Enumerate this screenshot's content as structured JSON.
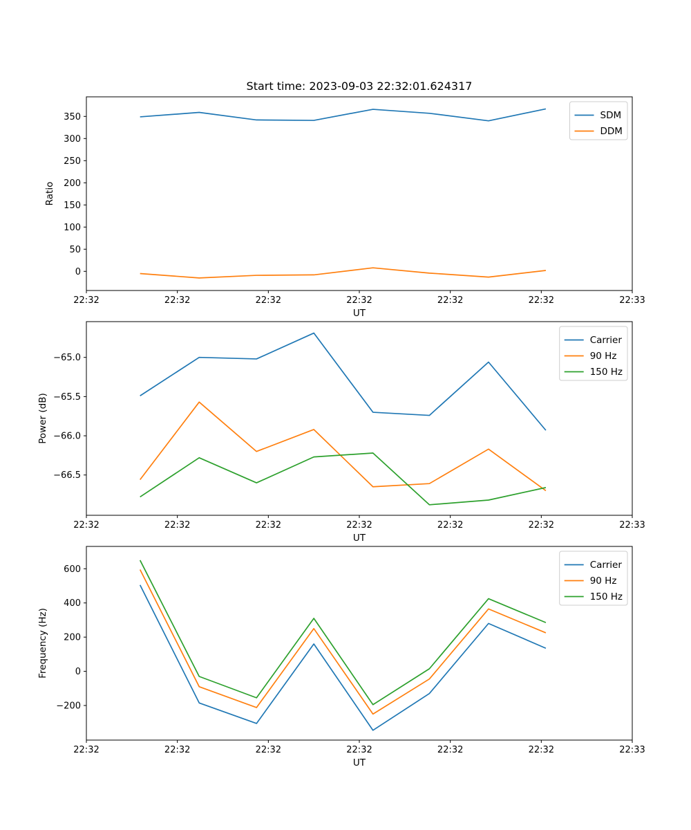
{
  "figure": {
    "title": "Start time: 2023-09-03 22:32:01.624317",
    "background": "#ffffff",
    "text_color": "#000000"
  },
  "chart_data": [
    {
      "type": "line",
      "title": "Start time: 2023-09-03 22:32:01.624317",
      "xlabel": "UT",
      "ylabel": "Ratio",
      "grid": false,
      "legend_position": "upper right",
      "xlim": [
        0,
        60
      ],
      "ylim": [
        -43.3,
        394.2
      ],
      "x": [
        5.9,
        12.4,
        18.7,
        25.0,
        31.5,
        37.7,
        44.2,
        50.5
      ],
      "xticks": {
        "values": [
          0,
          10,
          20,
          30,
          40,
          50,
          60
        ],
        "labels": [
          "22:32",
          "22:32",
          "22:32",
          "22:32",
          "22:32",
          "22:32",
          "22:33"
        ]
      },
      "yticks": {
        "values": [
          0,
          50,
          100,
          150,
          200,
          250,
          300,
          350
        ],
        "labels": [
          "0",
          "50",
          "100",
          "150",
          "200",
          "250",
          "300",
          "350"
        ]
      },
      "series": [
        {
          "name": "SDM",
          "color": "#1f77b4",
          "values": [
            349,
            359,
            342,
            341,
            366,
            357,
            340,
            367
          ]
        },
        {
          "name": "DDM",
          "color": "#ff7f0e",
          "values": [
            -5,
            -15,
            -9,
            -8,
            8,
            -4,
            -13,
            2
          ]
        }
      ]
    },
    {
      "type": "line",
      "title": "",
      "xlabel": "UT",
      "ylabel": "Power (dB)",
      "grid": false,
      "legend_position": "upper right",
      "xlim": [
        0,
        60
      ],
      "ylim": [
        -67.014,
        -64.544
      ],
      "x": [
        5.9,
        12.4,
        18.7,
        25.0,
        31.5,
        37.7,
        44.2,
        50.5
      ],
      "xticks": {
        "values": [
          0,
          10,
          20,
          30,
          40,
          50,
          60
        ],
        "labels": [
          "22:32",
          "22:32",
          "22:32",
          "22:32",
          "22:32",
          "22:32",
          "22:33"
        ]
      },
      "yticks": {
        "values": [
          -65.0,
          -65.5,
          -66.0,
          -66.5
        ],
        "labels": [
          "−65.0",
          "−65.5",
          "−66.0",
          "−66.5"
        ]
      },
      "series": [
        {
          "name": "Carrier",
          "color": "#1f77b4",
          "values": [
            -65.49,
            -65.0,
            -65.02,
            -64.69,
            -65.7,
            -65.74,
            -65.06,
            -65.93
          ]
        },
        {
          "name": "90 Hz",
          "color": "#ff7f0e",
          "values": [
            -66.56,
            -65.57,
            -66.2,
            -65.92,
            -66.65,
            -66.61,
            -66.17,
            -66.7
          ]
        },
        {
          "name": "150 Hz",
          "color": "#2ca02c",
          "values": [
            -66.78,
            -66.28,
            -66.6,
            -66.27,
            -66.22,
            -66.88,
            -66.82,
            -66.66
          ]
        }
      ]
    },
    {
      "type": "line",
      "title": "",
      "xlabel": "UT",
      "ylabel": "Frequency (Hz)",
      "grid": false,
      "legend_position": "upper right",
      "xlim": [
        0,
        60
      ],
      "ylim": [
        -402.3,
        730.7
      ],
      "x": [
        5.9,
        12.4,
        18.7,
        25.0,
        31.5,
        37.7,
        44.2,
        50.5
      ],
      "xticks": {
        "values": [
          0,
          10,
          20,
          30,
          40,
          50,
          60
        ],
        "labels": [
          "22:32",
          "22:32",
          "22:32",
          "22:32",
          "22:32",
          "22:32",
          "22:33"
        ]
      },
      "yticks": {
        "values": [
          -200,
          0,
          200,
          400,
          600
        ],
        "labels": [
          "−200",
          "0",
          "200",
          "400",
          "600"
        ]
      },
      "series": [
        {
          "name": "Carrier",
          "color": "#1f77b4",
          "values": [
            505,
            -185,
            -305,
            160,
            -345,
            -130,
            280,
            135
          ]
        },
        {
          "name": "90 Hz",
          "color": "#ff7f0e",
          "values": [
            595,
            -90,
            -212,
            250,
            -250,
            -45,
            365,
            225
          ]
        },
        {
          "name": "150 Hz",
          "color": "#2ca02c",
          "values": [
            650,
            -30,
            -155,
            310,
            -195,
            15,
            425,
            285
          ]
        }
      ]
    }
  ]
}
